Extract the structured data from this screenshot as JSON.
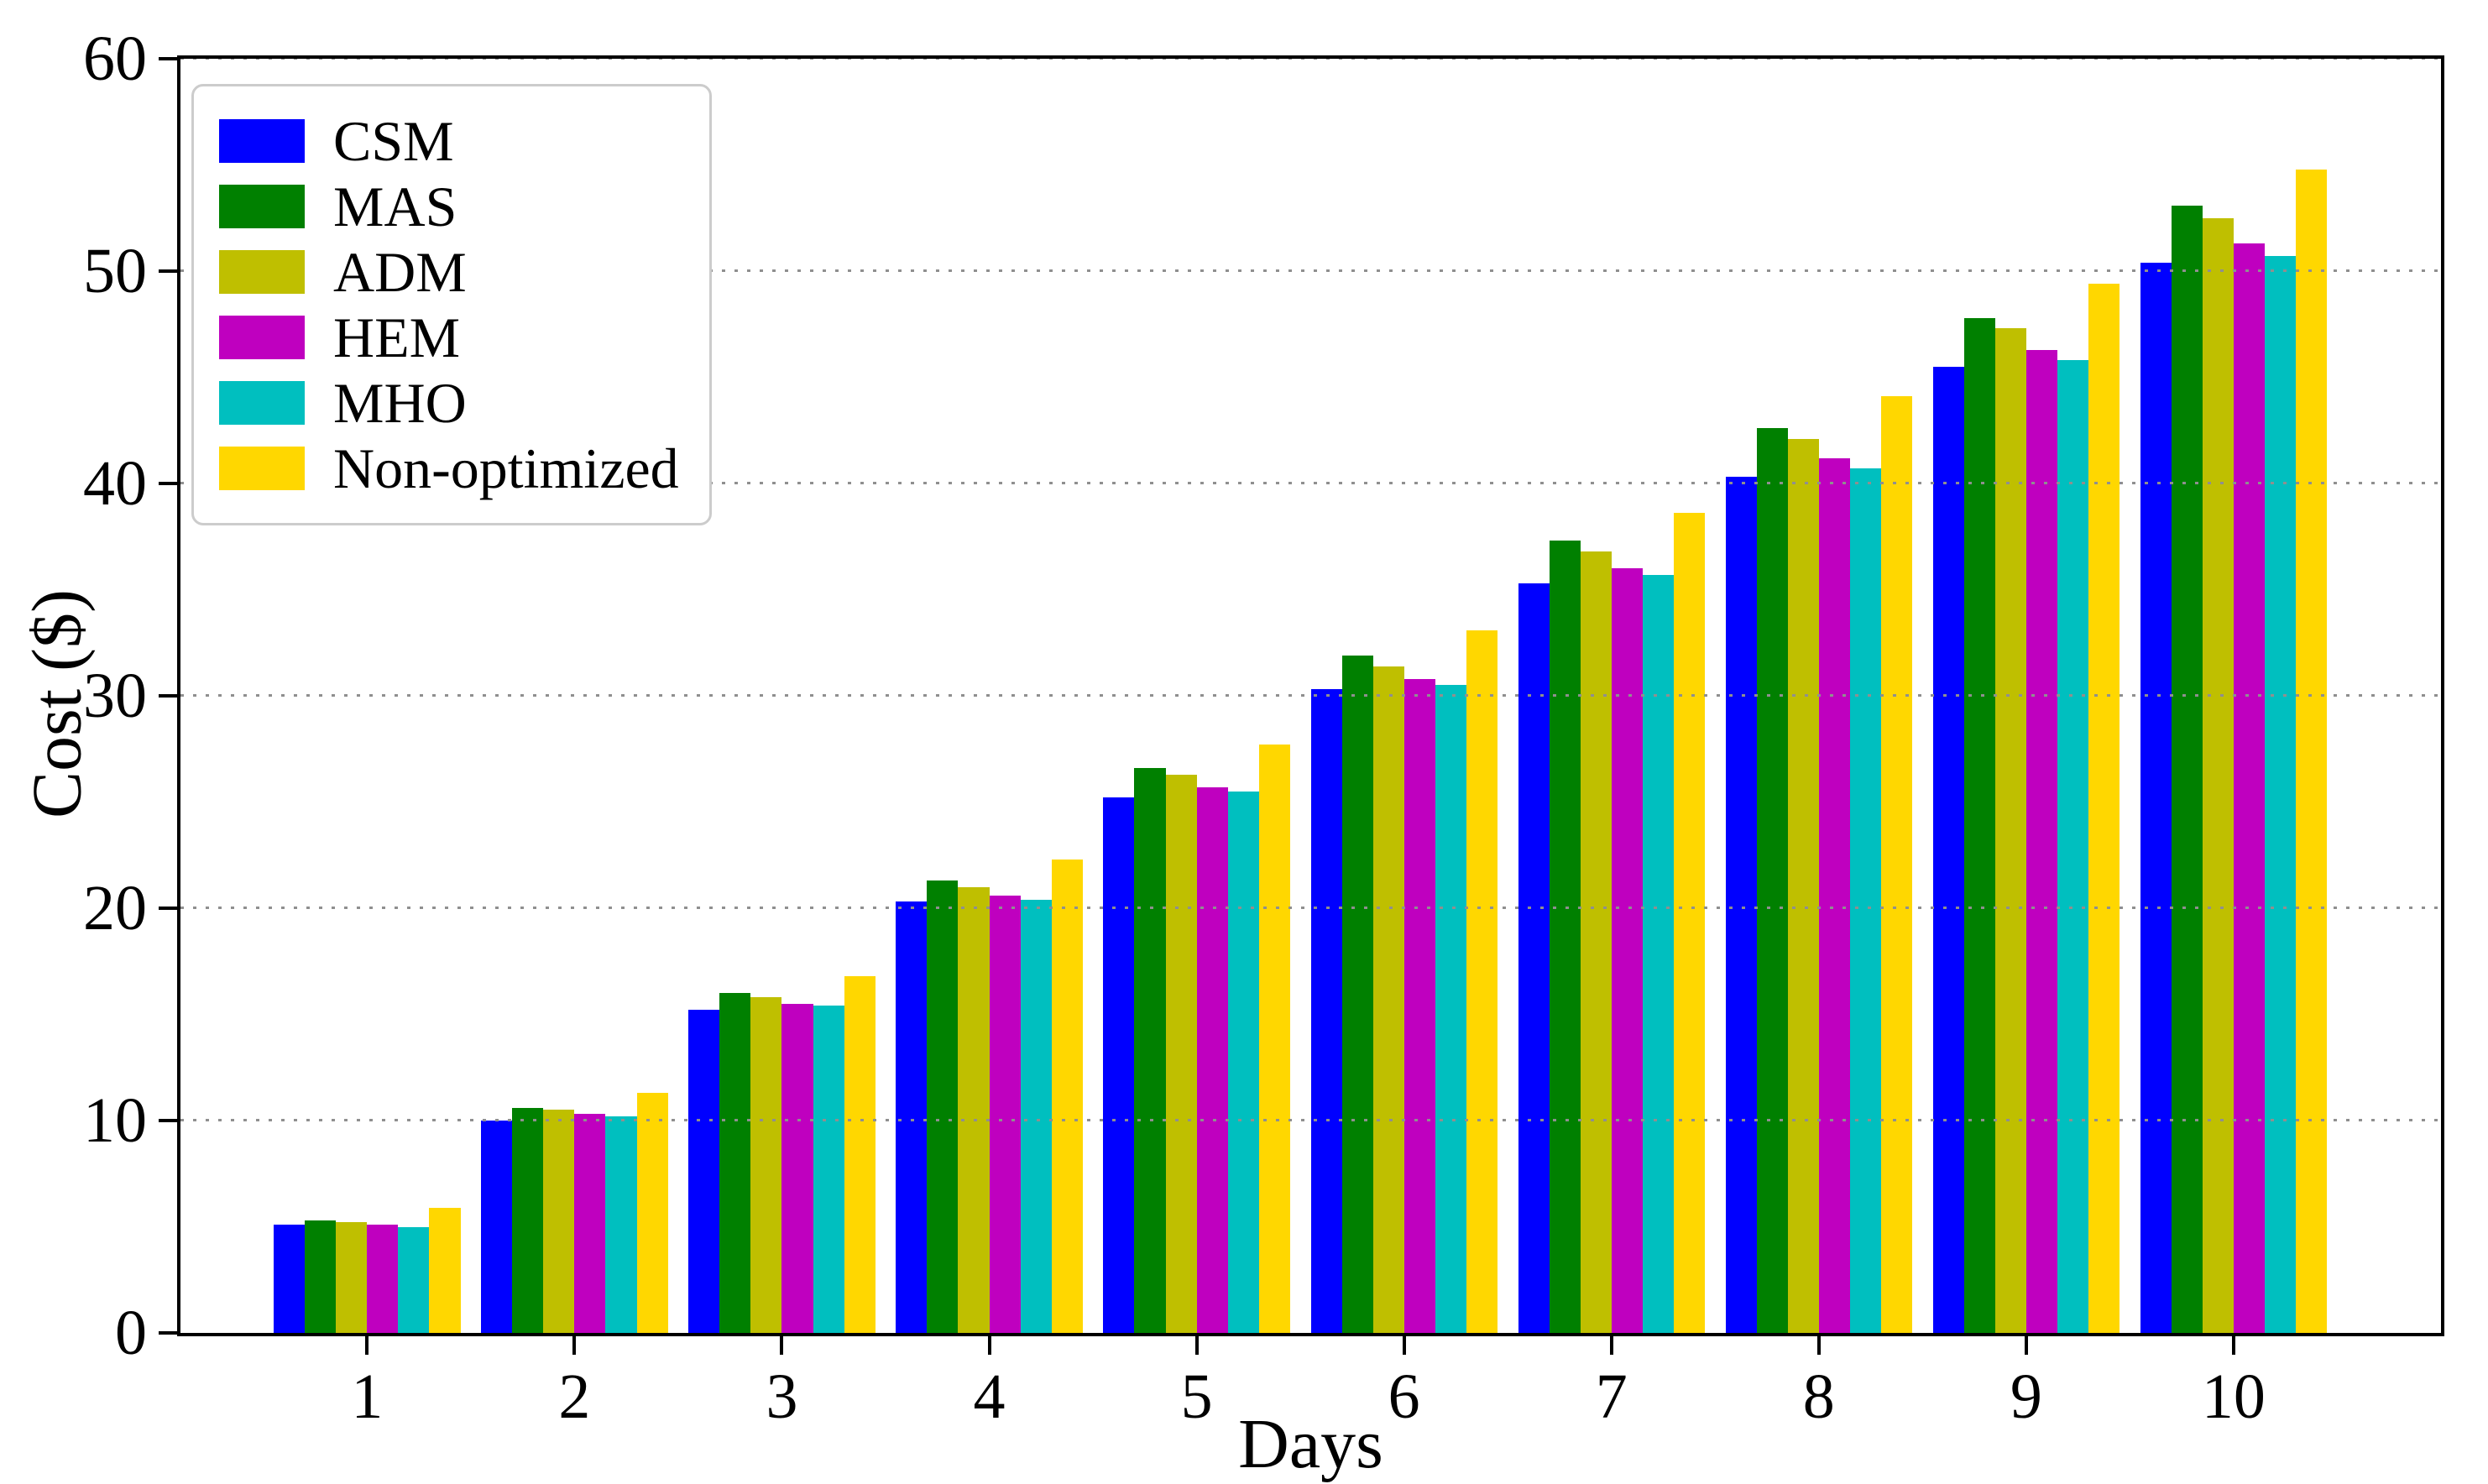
{
  "chart_data": {
    "type": "bar",
    "title": "",
    "xlabel": "Days",
    "ylabel": "Cost ($)",
    "categories": [
      "1",
      "2",
      "3",
      "4",
      "5",
      "6",
      "7",
      "8",
      "9",
      "10"
    ],
    "series": [
      {
        "name": "CSM",
        "color": "#0000ff",
        "values": [
          5.1,
          10.0,
          15.2,
          20.3,
          25.2,
          30.3,
          35.3,
          40.3,
          45.5,
          50.4
        ]
      },
      {
        "name": "MAS",
        "color": "#008000",
        "values": [
          5.3,
          10.6,
          16.0,
          21.3,
          26.6,
          31.9,
          37.3,
          42.6,
          47.8,
          53.1
        ]
      },
      {
        "name": "ADM",
        "color": "#bfbf00",
        "values": [
          5.2,
          10.5,
          15.8,
          21.0,
          26.3,
          31.4,
          36.8,
          42.1,
          47.3,
          52.5
        ]
      },
      {
        "name": "HEM",
        "color": "#bf00bf",
        "values": [
          5.1,
          10.3,
          15.5,
          20.6,
          25.7,
          30.8,
          36.0,
          41.2,
          46.3,
          51.3
        ]
      },
      {
        "name": "MHO",
        "color": "#00bfbf",
        "values": [
          5.0,
          10.2,
          15.4,
          20.4,
          25.5,
          30.5,
          35.7,
          40.7,
          45.8,
          50.7
        ]
      },
      {
        "name": "Non-optimized",
        "color": "#ffd700",
        "values": [
          5.9,
          11.3,
          16.8,
          22.3,
          27.7,
          33.1,
          38.6,
          44.1,
          49.4,
          54.8
        ]
      }
    ],
    "ylim": [
      0,
      60
    ],
    "y_ticks": [
      0,
      10,
      20,
      30,
      40,
      50,
      60
    ],
    "grid": "horizontal-dotted",
    "gridline_values": [
      10,
      20,
      30,
      40,
      50,
      60
    ],
    "legend_position": "upper-left",
    "bar_group_width_fraction": 0.9,
    "x_axis_units_range": [
      0.1,
      11.0
    ]
  },
  "colors": {
    "background": "#ffffff",
    "spine": "#000000",
    "gridline": "#8f8f8f",
    "legend_border": "#cccccc"
  }
}
